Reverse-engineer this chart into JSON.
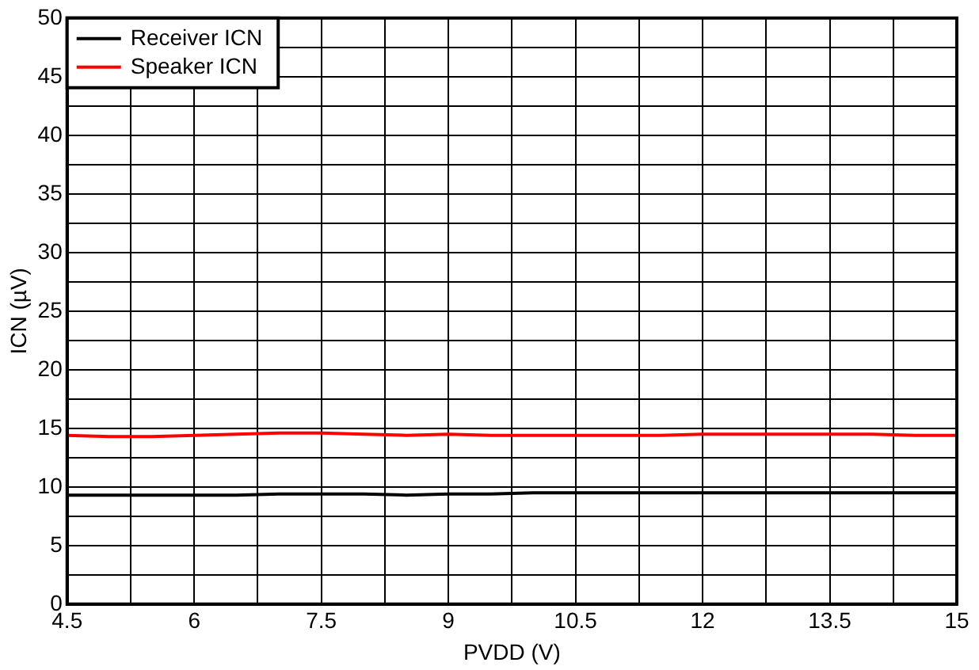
{
  "chart_data": {
    "type": "line",
    "xlabel": "PVDD (V)",
    "ylabel": "ICN (µV)",
    "x": [
      4.5,
      5,
      5.5,
      6,
      6.5,
      7,
      7.5,
      8,
      8.5,
      9,
      9.5,
      10,
      10.5,
      11,
      11.5,
      12,
      12.5,
      13,
      13.5,
      14,
      14.5,
      15
    ],
    "series": [
      {
        "name": "Receiver ICN",
        "color": "#000000",
        "values": [
          9.3,
          9.3,
          9.3,
          9.3,
          9.3,
          9.4,
          9.4,
          9.4,
          9.3,
          9.4,
          9.4,
          9.5,
          9.5,
          9.5,
          9.5,
          9.5,
          9.5,
          9.5,
          9.5,
          9.5,
          9.5,
          9.5
        ]
      },
      {
        "name": "Speaker ICN",
        "color": "#ff0000",
        "values": [
          14.4,
          14.3,
          14.3,
          14.4,
          14.5,
          14.6,
          14.6,
          14.5,
          14.4,
          14.5,
          14.4,
          14.4,
          14.4,
          14.4,
          14.4,
          14.5,
          14.5,
          14.5,
          14.5,
          14.5,
          14.4,
          14.4
        ]
      }
    ],
    "xlim": [
      4.5,
      15
    ],
    "xticks": [
      4.5,
      {
        "value": 5.25,
        "label": null
      },
      6,
      {
        "value": 6.75,
        "label": null
      },
      7.5,
      {
        "value": 8.25,
        "label": null
      },
      9,
      {
        "value": 9.75,
        "label": null
      },
      10.5,
      {
        "value": 11.25,
        "label": null
      },
      12,
      {
        "value": 12.75,
        "label": null
      },
      13.5,
      {
        "value": 14.25,
        "label": null
      },
      15
    ],
    "ylim": [
      0,
      50
    ],
    "yticks": [
      0,
      {
        "value": 2.5,
        "label": null
      },
      5,
      {
        "value": 7.5,
        "label": null
      },
      10,
      {
        "value": 12.5,
        "label": null
      },
      15,
      {
        "value": 17.5,
        "label": null
      },
      20,
      {
        "value": 22.5,
        "label": null
      },
      25,
      {
        "value": 27.5,
        "label": null
      },
      30,
      {
        "value": 32.5,
        "label": null
      },
      35,
      {
        "value": 37.5,
        "label": null
      },
      40,
      {
        "value": 42.5,
        "label": null
      },
      45,
      {
        "value": 47.5,
        "label": null
      },
      50
    ],
    "grid": true,
    "legend": "top left",
    "marker": "none",
    "line_style": "solid"
  }
}
